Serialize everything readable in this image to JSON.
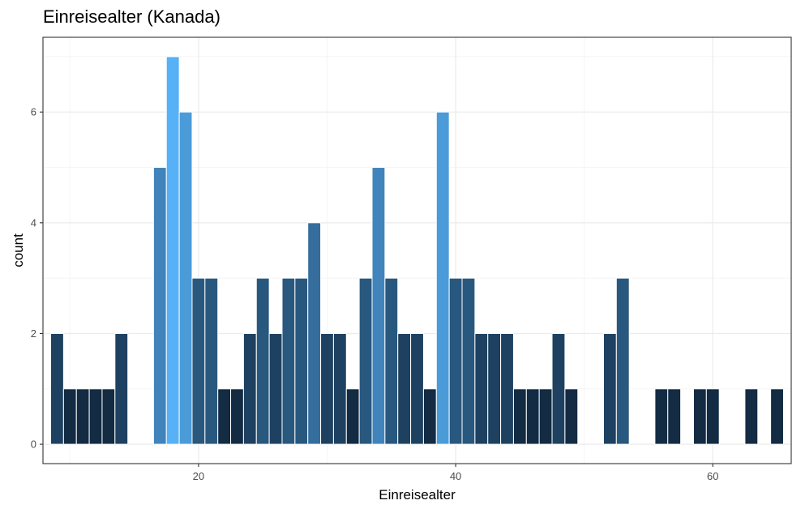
{
  "chart_data": {
    "type": "bar",
    "title": "Einreisealter (Kanada)",
    "xlabel": "Einreisealter",
    "ylabel": "count",
    "xlim": [
      7.9,
      66.1
    ],
    "ylim": [
      -0.35,
      7.35
    ],
    "x_ticks": [
      20,
      40,
      60
    ],
    "y_ticks": [
      0,
      2,
      4,
      6
    ],
    "grid": true,
    "fill_gradient": {
      "low": "#132B43",
      "high": "#56B1F7",
      "min": 1,
      "max": 7
    },
    "bars": [
      {
        "x": 9,
        "count": 2
      },
      {
        "x": 10,
        "count": 1
      },
      {
        "x": 11,
        "count": 1
      },
      {
        "x": 12,
        "count": 1
      },
      {
        "x": 13,
        "count": 1
      },
      {
        "x": 14,
        "count": 2
      },
      {
        "x": 17,
        "count": 5
      },
      {
        "x": 18,
        "count": 7
      },
      {
        "x": 19,
        "count": 6
      },
      {
        "x": 20,
        "count": 3
      },
      {
        "x": 21,
        "count": 3
      },
      {
        "x": 22,
        "count": 1
      },
      {
        "x": 23,
        "count": 1
      },
      {
        "x": 24,
        "count": 2
      },
      {
        "x": 25,
        "count": 3
      },
      {
        "x": 26,
        "count": 2
      },
      {
        "x": 27,
        "count": 3
      },
      {
        "x": 28,
        "count": 3
      },
      {
        "x": 29,
        "count": 4
      },
      {
        "x": 30,
        "count": 2
      },
      {
        "x": 31,
        "count": 2
      },
      {
        "x": 32,
        "count": 1
      },
      {
        "x": 33,
        "count": 3
      },
      {
        "x": 34,
        "count": 5
      },
      {
        "x": 35,
        "count": 3
      },
      {
        "x": 36,
        "count": 2
      },
      {
        "x": 37,
        "count": 2
      },
      {
        "x": 38,
        "count": 1
      },
      {
        "x": 39,
        "count": 6
      },
      {
        "x": 40,
        "count": 3
      },
      {
        "x": 41,
        "count": 3
      },
      {
        "x": 42,
        "count": 2
      },
      {
        "x": 43,
        "count": 2
      },
      {
        "x": 44,
        "count": 2
      },
      {
        "x": 45,
        "count": 1
      },
      {
        "x": 46,
        "count": 1
      },
      {
        "x": 47,
        "count": 1
      },
      {
        "x": 48,
        "count": 2
      },
      {
        "x": 49,
        "count": 1
      },
      {
        "x": 52,
        "count": 2
      },
      {
        "x": 53,
        "count": 3
      },
      {
        "x": 56,
        "count": 1
      },
      {
        "x": 57,
        "count": 1
      },
      {
        "x": 59,
        "count": 1
      },
      {
        "x": 60,
        "count": 1
      },
      {
        "x": 63,
        "count": 1
      },
      {
        "x": 65,
        "count": 1
      }
    ]
  }
}
